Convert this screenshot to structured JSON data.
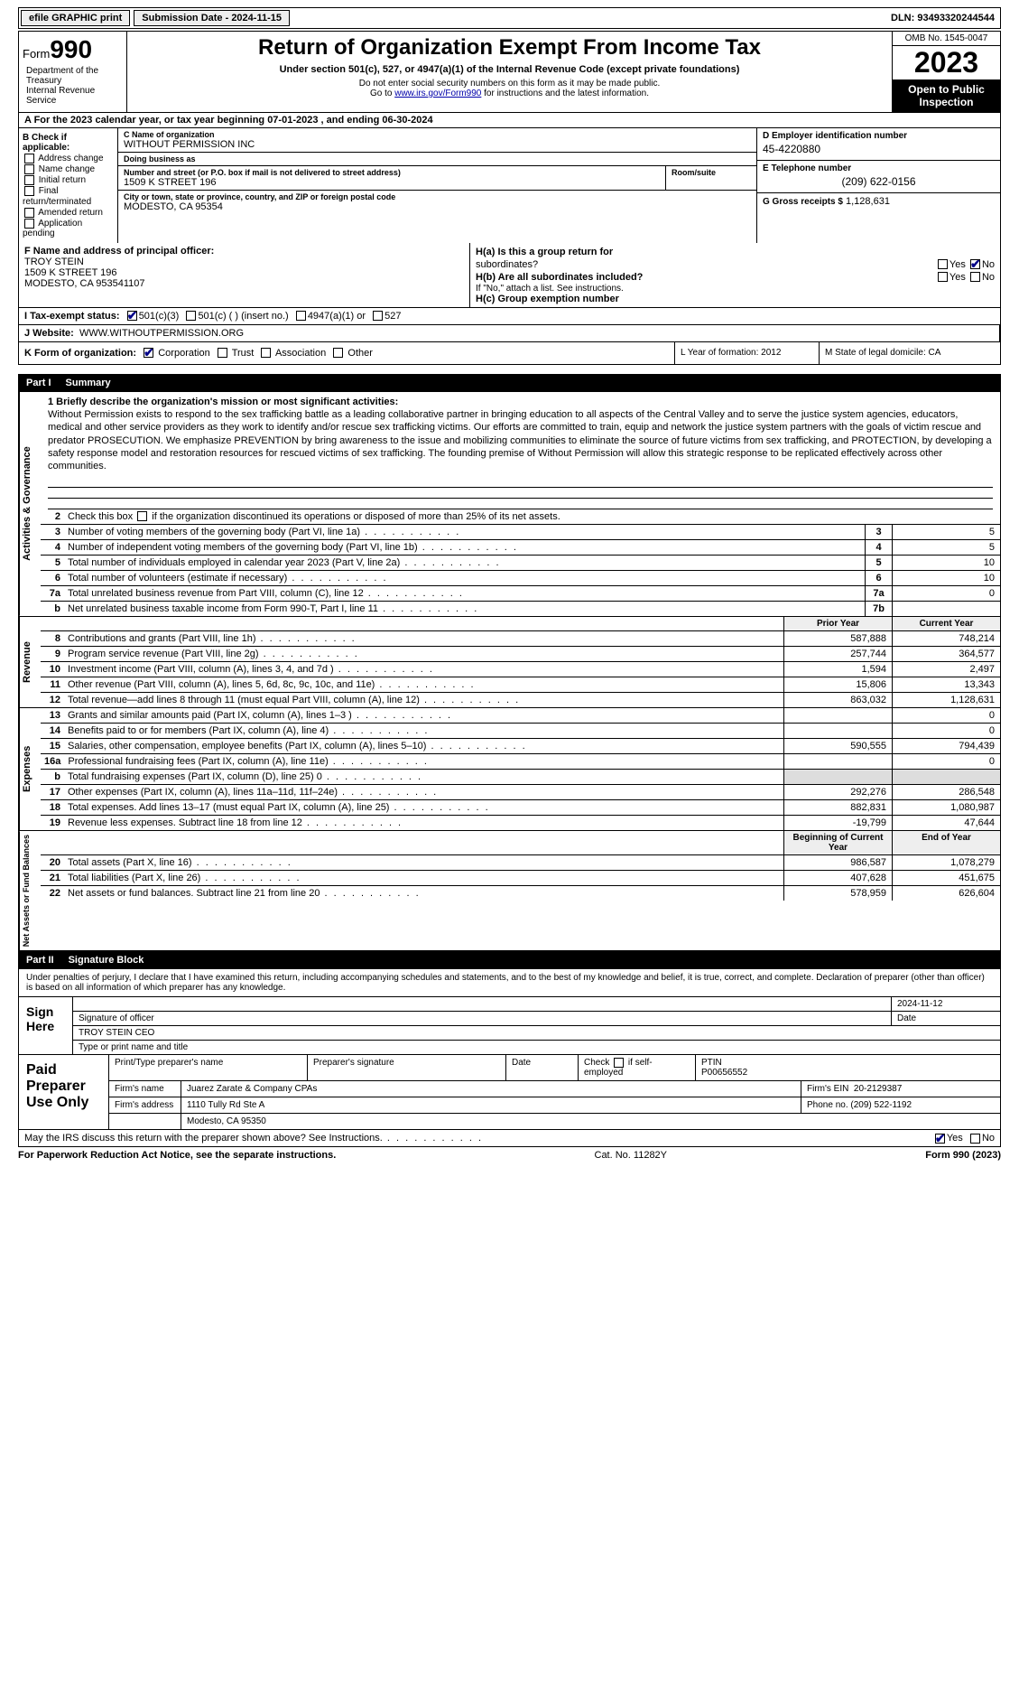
{
  "topbar": {
    "efile": "efile GRAPHIC print",
    "submission": "Submission Date - 2024-11-15",
    "dln": "DLN: 93493320244544"
  },
  "header": {
    "form": "Form",
    "formnum": "990",
    "title": "Return of Organization Exempt From Income Tax",
    "sub": "Under section 501(c), 527, or 4947(a)(1) of the Internal Revenue Code (except private foundations)",
    "note1": "Do not enter social security numbers on this form as it may be made public.",
    "note2a": "Go to ",
    "link": "www.irs.gov/Form990",
    "note2b": " for instructions and the latest information.",
    "dept": "Department of the Treasury\nInternal Revenue Service",
    "omb": "OMB No. 1545-0047",
    "year": "2023",
    "openpub": "Open to Public Inspection"
  },
  "rowA": "A For the 2023 calendar year, or tax year beginning 07-01-2023    , and ending 06-30-2024",
  "boxB": {
    "label": "B Check if applicable:",
    "items": [
      "Address change",
      "Name change",
      "Initial return",
      "Final return/terminated",
      "Amended return",
      "Application pending"
    ]
  },
  "boxC": {
    "nameLabel": "C Name of organization",
    "name": "WITHOUT PERMISSION INC",
    "dbaLabel": "Doing business as",
    "dba": "",
    "streetLabel": "Number and street (or P.O. box if mail is not delivered to street address)",
    "street": "1509 K STREET 196",
    "roomLabel": "Room/suite",
    "cityLabel": "City or town, state or province, country, and ZIP or foreign postal code",
    "city": "MODESTO, CA  95354"
  },
  "boxD": {
    "label": "D Employer identification number",
    "val": "45-4220880"
  },
  "boxE": {
    "label": "E Telephone number",
    "val": "(209) 622-0156"
  },
  "boxG": {
    "label": "G Gross receipts $",
    "val": "1,128,631"
  },
  "boxF": {
    "label": "F  Name and address of principal officer:",
    "name": "TROY STEIN",
    "addr1": "1509 K STREET 196",
    "addr2": "MODESTO, CA  953541107"
  },
  "boxH": {
    "a": "H(a)  Is this a group return for",
    "a2": "subordinates?",
    "b": "H(b)  Are all subordinates included?",
    "bnote": "If \"No,\" attach a list. See instructions.",
    "c": "H(c)  Group exemption number",
    "yes": "Yes",
    "no": "No"
  },
  "rowI": {
    "label": "I   Tax-exempt status:",
    "opts": [
      "501(c)(3)",
      "501(c) (  ) (insert no.)",
      "4947(a)(1) or",
      "527"
    ]
  },
  "rowJ": {
    "label": "J   Website:",
    "val": "WWW.WITHOUTPERMISSION.ORG"
  },
  "rowK": {
    "label": "K Form of organization:",
    "opts": [
      "Corporation",
      "Trust",
      "Association",
      "Other"
    ],
    "L": "L Year of formation: 2012",
    "M": "M State of legal domicile: CA"
  },
  "part1": {
    "num": "Part I",
    "title": "Summary"
  },
  "mission": {
    "line1label": "1   Briefly describe the organization's mission or most significant activities:",
    "text": "Without Permission exists to respond to the sex trafficking battle as a leading collaborative partner in bringing education to all aspects of the Central Valley and to serve the justice system agencies, educators, medical and other service providers as they work to identify and/or rescue sex trafficking victims. Our efforts are committed to train, equip and network the justice system partners with the goals of victim rescue and predator PROSECUTION. We emphasize PREVENTION by bring awareness to the issue and mobilizing communities to eliminate the source of future victims from sex trafficking, and PROTECTION, by developing a safety response model and restoration resources for rescued victims of sex trafficking. The founding premise of Without Permission will allow this strategic response to be replicated effectively across other communities."
  },
  "govSection": {
    "tab": "Activities & Governance",
    "line2": "Check this box        if the organization discontinued its operations or disposed of more than 25% of its net assets.",
    "rows": [
      {
        "n": "3",
        "t": "Number of voting members of the governing body (Part VI, line 1a)",
        "box": "3",
        "v": "5"
      },
      {
        "n": "4",
        "t": "Number of independent voting members of the governing body (Part VI, line 1b)",
        "box": "4",
        "v": "5"
      },
      {
        "n": "5",
        "t": "Total number of individuals employed in calendar year 2023 (Part V, line 2a)",
        "box": "5",
        "v": "10"
      },
      {
        "n": "6",
        "t": "Total number of volunteers (estimate if necessary)",
        "box": "6",
        "v": "10"
      },
      {
        "n": "7a",
        "t": "Total unrelated business revenue from Part VIII, column (C), line 12",
        "box": "7a",
        "v": "0"
      },
      {
        "n": "b",
        "t": "Net unrelated business taxable income from Form 990-T, Part I, line 11",
        "box": "7b",
        "v": ""
      }
    ]
  },
  "revSection": {
    "tab": "Revenue",
    "hdrPrior": "Prior Year",
    "hdrCurrent": "Current Year",
    "rows": [
      {
        "n": "8",
        "t": "Contributions and grants (Part VIII, line 1h)",
        "p": "587,888",
        "c": "748,214"
      },
      {
        "n": "9",
        "t": "Program service revenue (Part VIII, line 2g)",
        "p": "257,744",
        "c": "364,577"
      },
      {
        "n": "10",
        "t": "Investment income (Part VIII, column (A), lines 3, 4, and 7d )",
        "p": "1,594",
        "c": "2,497"
      },
      {
        "n": "11",
        "t": "Other revenue (Part VIII, column (A), lines 5, 6d, 8c, 9c, 10c, and 11e)",
        "p": "15,806",
        "c": "13,343"
      },
      {
        "n": "12",
        "t": "Total revenue—add lines 8 through 11 (must equal Part VIII, column (A), line 12)",
        "p": "863,032",
        "c": "1,128,631"
      }
    ]
  },
  "expSection": {
    "tab": "Expenses",
    "rows": [
      {
        "n": "13",
        "t": "Grants and similar amounts paid (Part IX, column (A), lines 1–3 )",
        "p": "",
        "c": "0"
      },
      {
        "n": "14",
        "t": "Benefits paid to or for members (Part IX, column (A), line 4)",
        "p": "",
        "c": "0"
      },
      {
        "n": "15",
        "t": "Salaries, other compensation, employee benefits (Part IX, column (A), lines 5–10)",
        "p": "590,555",
        "c": "794,439"
      },
      {
        "n": "16a",
        "t": "Professional fundraising fees (Part IX, column (A), line 11e)",
        "p": "",
        "c": "0"
      },
      {
        "n": "b",
        "t": "Total fundraising expenses (Part IX, column (D), line 25) 0",
        "p": "",
        "c": "",
        "grey": true
      },
      {
        "n": "17",
        "t": "Other expenses (Part IX, column (A), lines 11a–11d, 11f–24e)",
        "p": "292,276",
        "c": "286,548"
      },
      {
        "n": "18",
        "t": "Total expenses. Add lines 13–17 (must equal Part IX, column (A), line 25)",
        "p": "882,831",
        "c": "1,080,987"
      },
      {
        "n": "19",
        "t": "Revenue less expenses. Subtract line 18 from line 12",
        "p": "-19,799",
        "c": "47,644"
      }
    ]
  },
  "netSection": {
    "tab": "Net Assets or Fund Balances",
    "hdrPrior": "Beginning of Current Year",
    "hdrCurrent": "End of Year",
    "rows": [
      {
        "n": "20",
        "t": "Total assets (Part X, line 16)",
        "p": "986,587",
        "c": "1,078,279"
      },
      {
        "n": "21",
        "t": "Total liabilities (Part X, line 26)",
        "p": "407,628",
        "c": "451,675"
      },
      {
        "n": "22",
        "t": "Net assets or fund balances. Subtract line 21 from line 20",
        "p": "578,959",
        "c": "626,604"
      }
    ]
  },
  "part2": {
    "num": "Part II",
    "title": "Signature Block"
  },
  "sigText": "Under penalties of perjury, I declare that I have examined this return, including accompanying schedules and statements, and to the best of my knowledge and belief, it is true, correct, and complete. Declaration of preparer (other than officer) is based on all information of which preparer has any knowledge.",
  "signHere": {
    "label": "Sign Here",
    "sigLabel": "Signature of officer",
    "date": "2024-11-12",
    "dateLabel": "Date",
    "name": "TROY STEIN  CEO",
    "nameLabel": "Type or print name and title"
  },
  "prep": {
    "label": "Paid Preparer Use Only",
    "h1": "Print/Type preparer's name",
    "h2": "Preparer's signature",
    "h3": "Date",
    "h4a": "Check",
    "h4b": "if self-employed",
    "h5": "PTIN",
    "ptin": "P00656552",
    "firmLabel": "Firm's name",
    "firm": "Juarez Zarate & Company CPAs",
    "einLabel": "Firm's EIN",
    "ein": "20-2129387",
    "addrLabel": "Firm's address",
    "addr1": "1110 Tully Rd Ste A",
    "addr2": "Modesto, CA  95350",
    "phoneLabel": "Phone no.",
    "phone": "(209) 522-1192"
  },
  "discuss": {
    "text": "May the IRS discuss this return with the preparer shown above? See Instructions.",
    "yes": "Yes",
    "no": "No"
  },
  "footer": {
    "left": "For Paperwork Reduction Act Notice, see the separate instructions.",
    "mid": "Cat. No. 11282Y",
    "right": "Form 990 (2023)"
  }
}
